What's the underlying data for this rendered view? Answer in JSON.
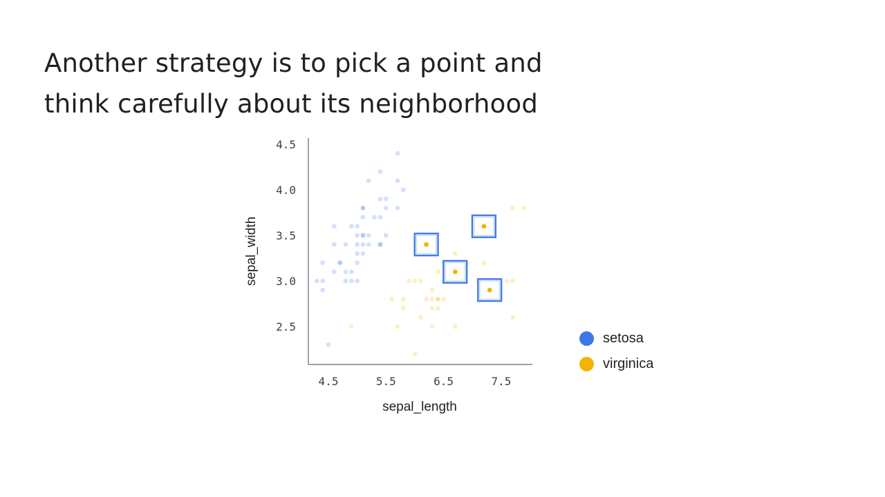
{
  "slide": {
    "title_lines": [
      "Another strategy is to pick a point and",
      "think carefully about its neighborhood"
    ]
  },
  "colors": {
    "setosa": "#3b78e7",
    "virginica": "#f2b400",
    "highlight_box": "#3b78e7"
  },
  "chart_data": {
    "type": "scatter",
    "title": "",
    "xlabel": "sepal_length",
    "ylabel": "sepal_width",
    "xlim": [
      4.2,
      8.1
    ],
    "ylim": [
      2.1,
      4.6
    ],
    "xticks": [
      "4.5",
      "5.5",
      "6.5",
      "7.5"
    ],
    "yticks": [
      "4.5",
      "4.0",
      "3.5",
      "3.0",
      "2.5"
    ],
    "legend_position": "right",
    "series": [
      {
        "name": "setosa",
        "faded": true,
        "points": [
          [
            5.7,
            4.4
          ],
          [
            5.4,
            4.2
          ],
          [
            5.7,
            4.1
          ],
          [
            5.8,
            4.0
          ],
          [
            5.5,
            3.9
          ],
          [
            5.4,
            3.9
          ],
          [
            5.1,
            3.8
          ],
          [
            5.7,
            3.8
          ],
          [
            5.1,
            3.8
          ],
          [
            5.5,
            3.8
          ],
          [
            5.4,
            3.7
          ],
          [
            5.1,
            3.7
          ],
          [
            4.6,
            3.6
          ],
          [
            5.0,
            3.6
          ],
          [
            5.4,
            3.4
          ],
          [
            5.1,
            3.4
          ],
          [
            5.2,
            3.4
          ],
          [
            5.0,
            3.4
          ],
          [
            4.8,
            3.4
          ],
          [
            5.1,
            3.5
          ],
          [
            5.0,
            3.5
          ],
          [
            5.5,
            3.5
          ],
          [
            5.3,
            3.7
          ],
          [
            4.9,
            3.6
          ],
          [
            5.2,
            3.5
          ],
          [
            5.0,
            3.3
          ],
          [
            4.6,
            3.4
          ],
          [
            4.5,
            2.3
          ],
          [
            4.4,
            3.2
          ],
          [
            4.3,
            3.0
          ],
          [
            4.4,
            2.9
          ],
          [
            4.4,
            3.0
          ],
          [
            4.6,
            3.1
          ],
          [
            4.7,
            3.2
          ],
          [
            4.9,
            3.1
          ],
          [
            4.8,
            3.0
          ],
          [
            4.9,
            3.0
          ],
          [
            5.0,
            3.0
          ],
          [
            4.8,
            3.1
          ],
          [
            5.1,
            3.3
          ],
          [
            5.2,
            4.1
          ],
          [
            4.7,
            3.2
          ],
          [
            5.1,
            3.5
          ],
          [
            5.0,
            3.2
          ],
          [
            5.4,
            3.4
          ]
        ]
      },
      {
        "name": "virginica",
        "faded": true,
        "points": [
          [
            7.7,
            3.8
          ],
          [
            7.9,
            3.8
          ],
          [
            7.7,
            3.0
          ],
          [
            7.7,
            2.6
          ],
          [
            7.6,
            3.0
          ],
          [
            7.4,
            2.8
          ],
          [
            7.2,
            3.2
          ],
          [
            7.2,
            3.0
          ],
          [
            7.1,
            3.0
          ],
          [
            6.9,
            3.2
          ],
          [
            6.9,
            3.1
          ],
          [
            6.8,
            3.0
          ],
          [
            6.7,
            3.3
          ],
          [
            6.7,
            3.1
          ],
          [
            6.7,
            2.5
          ],
          [
            6.5,
            3.0
          ],
          [
            6.5,
            3.2
          ],
          [
            6.4,
            2.8
          ],
          [
            6.4,
            2.7
          ],
          [
            6.4,
            3.1
          ],
          [
            6.3,
            2.9
          ],
          [
            6.3,
            3.4
          ],
          [
            6.3,
            2.7
          ],
          [
            6.3,
            2.8
          ],
          [
            6.2,
            2.8
          ],
          [
            6.2,
            3.4
          ],
          [
            6.1,
            2.6
          ],
          [
            6.1,
            3.0
          ],
          [
            6.0,
            2.2
          ],
          [
            6.0,
            3.0
          ],
          [
            5.9,
            3.0
          ],
          [
            5.8,
            2.8
          ],
          [
            5.8,
            2.7
          ],
          [
            5.7,
            2.5
          ],
          [
            5.6,
            2.8
          ],
          [
            4.9,
            2.5
          ],
          [
            6.4,
            2.8
          ],
          [
            6.3,
            2.5
          ],
          [
            6.5,
            2.8
          ]
        ]
      },
      {
        "name": "virginica",
        "highlighted": true,
        "points": [
          [
            6.2,
            3.4
          ],
          [
            6.7,
            3.1
          ],
          [
            7.2,
            3.6
          ],
          [
            7.3,
            2.9
          ]
        ]
      }
    ]
  },
  "legend": {
    "items": [
      {
        "label": "setosa",
        "color": "#3b78e7"
      },
      {
        "label": "virginica",
        "color": "#f2b400"
      }
    ]
  }
}
